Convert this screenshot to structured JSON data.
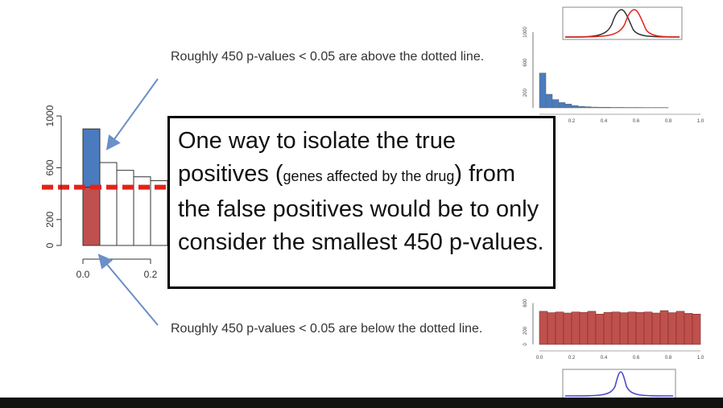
{
  "slide": {
    "note_top": "Roughly 450 p-values < 0.05 are above the dotted line.",
    "note_bottom": "Roughly 450 p-values < 0.05 are below the dotted line.",
    "callout": {
      "part1": "One way to isolate the true positives (",
      "part_small": "genes affected by the drug",
      "part2": ") from the false positives would be to only consider the smallest 450 p-values."
    }
  },
  "chart_data": [
    {
      "type": "bar",
      "title": "",
      "ylim": [
        0,
        1100
      ],
      "yticks": [
        "0",
        "200",
        "600",
        "1000"
      ],
      "xticks": [
        "0.0",
        "0.2"
      ],
      "dotted_line_value": 450,
      "bins": [
        {
          "x": 0.0,
          "value": 900,
          "split": 450
        },
        {
          "x": 0.05,
          "value": 640
        },
        {
          "x": 0.1,
          "value": 580
        },
        {
          "x": 0.15,
          "value": 530
        },
        {
          "x": 0.2,
          "value": 500
        }
      ],
      "colors": {
        "upper": "#4a7bbf",
        "lower": "#c0504d",
        "line": "#e2231a"
      }
    },
    {
      "type": "bar",
      "title": "",
      "yticks": [
        "1000",
        "600",
        "200"
      ],
      "xticks": [
        "0.2",
        "0.4",
        "0.6",
        "0.8",
        "1.0"
      ],
      "values": [
        460,
        180,
        110,
        70,
        50,
        30,
        20,
        15,
        10,
        8,
        8,
        6,
        6,
        5,
        5,
        5,
        4,
        4,
        4,
        4
      ],
      "color": "#4a7bbf"
    },
    {
      "type": "bar",
      "title": "",
      "yticks": [
        "600",
        "200",
        "0"
      ],
      "xticks": [
        "0.0",
        "0.2",
        "0.4",
        "0.6",
        "0.8",
        "1.0"
      ],
      "values": [
        480,
        460,
        470,
        455,
        470,
        465,
        480,
        440,
        465,
        470,
        460,
        470,
        465,
        470,
        455,
        490,
        460,
        480,
        450,
        440
      ],
      "ylim": [
        0,
        700
      ],
      "color": "#c0504d"
    }
  ],
  "colors": {
    "blue": "#4a7bbf",
    "red": "#c0504d",
    "dark": "#333333",
    "purple": "#5555cc"
  }
}
